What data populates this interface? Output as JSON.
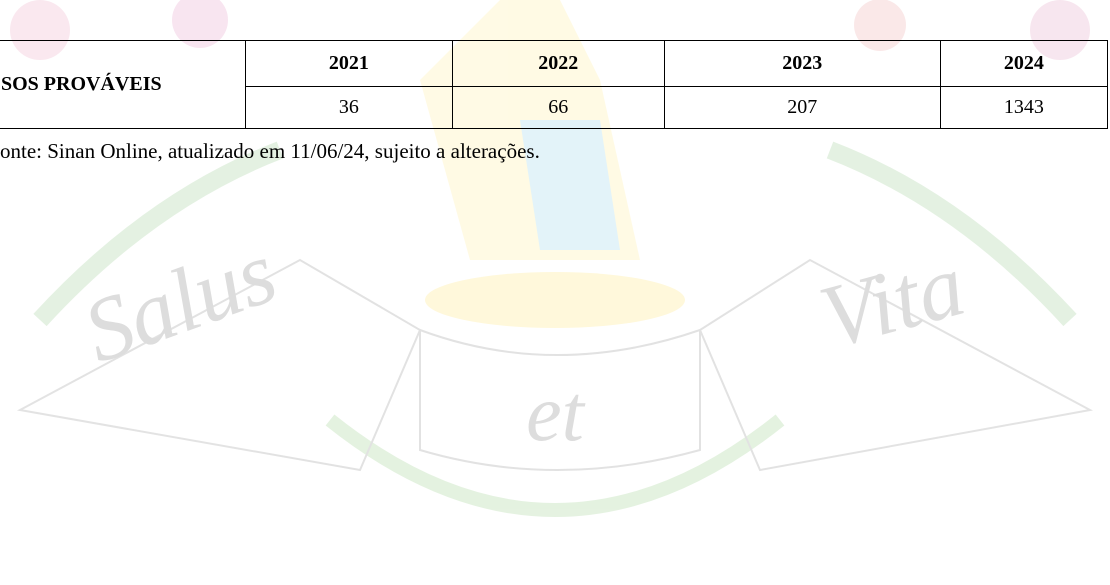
{
  "watermark": {
    "words": [
      "Salus",
      "et",
      "Vita"
    ]
  },
  "table": {
    "row_header": "SOS PROVÁVEIS",
    "columns": [
      "2021",
      "2022",
      "2023",
      "2024"
    ],
    "values": [
      "36",
      "66",
      "207",
      "1343"
    ]
  },
  "source": "onte: Sinan Online, atualizado em 11/06/24, sujeito a alterações."
}
